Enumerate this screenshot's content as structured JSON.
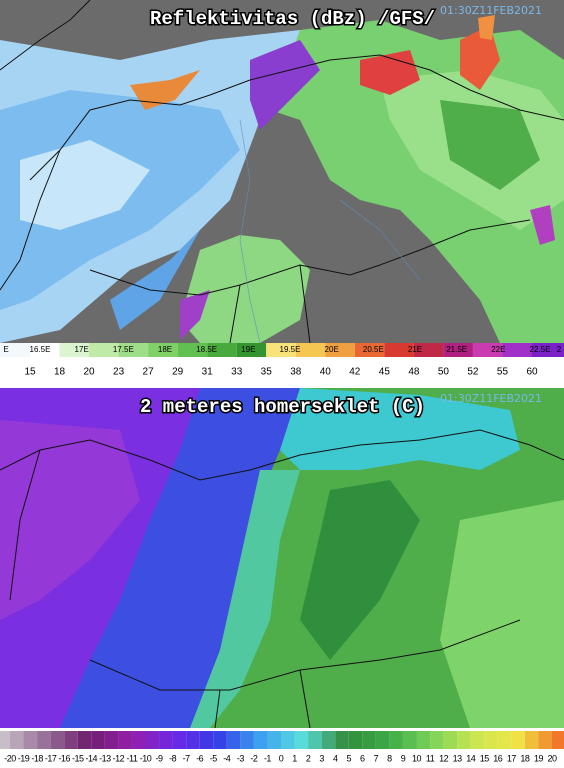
{
  "top_panel": {
    "title": "Reflektivitas (dBz) /GFS/",
    "timestamp": "01:30Z11FEB2021",
    "longitudes": [
      "E",
      "16.5E",
      "17E",
      "17.5E",
      "18E",
      "18.5E",
      "19E",
      "19.5E",
      "20E",
      "20.5E",
      "21E",
      "21.5E",
      "22E",
      "22.5E",
      "2"
    ],
    "scale": [
      15,
      18,
      20,
      23,
      27,
      29,
      31,
      33,
      35,
      38,
      40,
      42,
      45,
      48,
      50,
      52,
      55,
      60
    ]
  },
  "bottom_panel": {
    "title": "2 meteres homerseklet (C)",
    "timestamp": "01:30Z11FEB2021",
    "scale": [
      -20,
      -19,
      -18,
      -17,
      -16,
      -15,
      -14,
      -13,
      -12,
      -11,
      -10,
      -9,
      -8,
      -7,
      -6,
      -5,
      -4,
      -3,
      -2,
      -1,
      0,
      1,
      2,
      3,
      4,
      5,
      6,
      7,
      8,
      9,
      10,
      11,
      12,
      13,
      14,
      15,
      16,
      17,
      18,
      19,
      20
    ]
  }
}
